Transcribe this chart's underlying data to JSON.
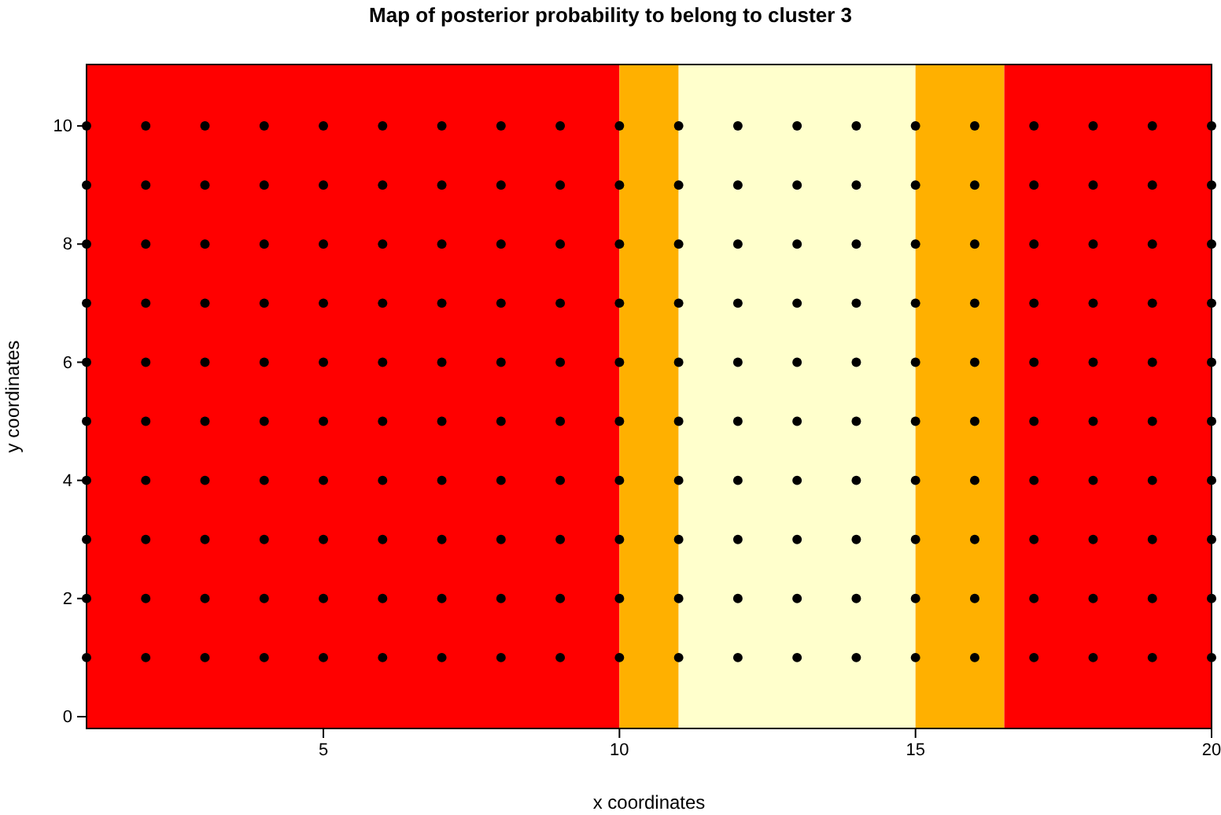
{
  "chart_data": {
    "type": "scatter",
    "title": "Map of posterior probability to belong to cluster  3",
    "xlabel": "x coordinates",
    "ylabel": "y coordinates",
    "xlim": [
      1,
      20
    ],
    "ylim": [
      -0.2,
      11.04
    ],
    "xticks": [
      5,
      10,
      15,
      20
    ],
    "yticks": [
      0,
      2,
      4,
      6,
      8,
      10
    ],
    "grid": false,
    "marker": "circle",
    "bands": [
      {
        "axis": "x",
        "from": 1,
        "to": 10,
        "color": "#ff0000"
      },
      {
        "axis": "x",
        "from": 10,
        "to": 11,
        "color": "#ffb000"
      },
      {
        "axis": "x",
        "from": 11,
        "to": 15,
        "color": "#ffffcc"
      },
      {
        "axis": "x",
        "from": 15,
        "to": 16.5,
        "color": "#ffb000"
      },
      {
        "axis": "x",
        "from": 16.5,
        "to": 20,
        "color": "#ff0000"
      }
    ],
    "series": [
      {
        "color": "#000000",
        "x": [
          1,
          2,
          3,
          4,
          5,
          6,
          7,
          8,
          9,
          10,
          11,
          12,
          13,
          14,
          15,
          16,
          17,
          18,
          19,
          20,
          1,
          2,
          3,
          4,
          5,
          6,
          7,
          8,
          9,
          10,
          11,
          12,
          13,
          14,
          15,
          16,
          17,
          18,
          19,
          20,
          1,
          2,
          3,
          4,
          5,
          6,
          7,
          8,
          9,
          10,
          11,
          12,
          13,
          14,
          15,
          16,
          17,
          18,
          19,
          20,
          1,
          2,
          3,
          4,
          5,
          6,
          7,
          8,
          9,
          10,
          11,
          12,
          13,
          14,
          15,
          16,
          17,
          18,
          19,
          20,
          1,
          2,
          3,
          4,
          5,
          6,
          7,
          8,
          9,
          10,
          11,
          12,
          13,
          14,
          15,
          16,
          17,
          18,
          19,
          20,
          1,
          2,
          3,
          4,
          5,
          6,
          7,
          8,
          9,
          10,
          11,
          12,
          13,
          14,
          15,
          16,
          17,
          18,
          19,
          20,
          1,
          2,
          3,
          4,
          5,
          6,
          7,
          8,
          9,
          10,
          11,
          12,
          13,
          14,
          15,
          16,
          17,
          18,
          19,
          20,
          1,
          2,
          3,
          4,
          5,
          6,
          7,
          8,
          9,
          10,
          11,
          12,
          13,
          14,
          15,
          16,
          17,
          18,
          19,
          20,
          1,
          2,
          3,
          4,
          5,
          6,
          7,
          8,
          9,
          10,
          11,
          12,
          13,
          14,
          15,
          16,
          17,
          18,
          19,
          20,
          1,
          2,
          3,
          4,
          5,
          6,
          7,
          8,
          9,
          10,
          11,
          12,
          13,
          14,
          15,
          16,
          17,
          18,
          19,
          20
        ],
        "values": [
          1,
          1,
          1,
          1,
          1,
          1,
          1,
          1,
          1,
          1,
          1,
          1,
          1,
          1,
          1,
          1,
          1,
          1,
          1,
          1,
          2,
          2,
          2,
          2,
          2,
          2,
          2,
          2,
          2,
          2,
          2,
          2,
          2,
          2,
          2,
          2,
          2,
          2,
          2,
          2,
          3,
          3,
          3,
          3,
          3,
          3,
          3,
          3,
          3,
          3,
          3,
          3,
          3,
          3,
          3,
          3,
          3,
          3,
          3,
          3,
          4,
          4,
          4,
          4,
          4,
          4,
          4,
          4,
          4,
          4,
          4,
          4,
          4,
          4,
          4,
          4,
          4,
          4,
          4,
          4,
          5,
          5,
          5,
          5,
          5,
          5,
          5,
          5,
          5,
          5,
          5,
          5,
          5,
          5,
          5,
          5,
          5,
          5,
          5,
          5,
          6,
          6,
          6,
          6,
          6,
          6,
          6,
          6,
          6,
          6,
          6,
          6,
          6,
          6,
          6,
          6,
          6,
          6,
          6,
          6,
          7,
          7,
          7,
          7,
          7,
          7,
          7,
          7,
          7,
          7,
          7,
          7,
          7,
          7,
          7,
          7,
          7,
          7,
          7,
          7,
          8,
          8,
          8,
          8,
          8,
          8,
          8,
          8,
          8,
          8,
          8,
          8,
          8,
          8,
          8,
          8,
          8,
          8,
          8,
          8,
          9,
          9,
          9,
          9,
          9,
          9,
          9,
          9,
          9,
          9,
          9,
          9,
          9,
          9,
          9,
          9,
          9,
          9,
          9,
          9,
          10,
          10,
          10,
          10,
          10,
          10,
          10,
          10,
          10,
          10,
          10,
          10,
          10,
          10,
          10,
          10,
          10,
          10,
          10,
          10
        ]
      }
    ]
  }
}
